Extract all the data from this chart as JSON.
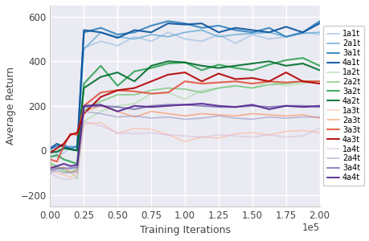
{
  "xlabel": "Training Iterations",
  "ylabel": "Average Return",
  "xlim": [
    0,
    200000
  ],
  "ylim": [
    -250,
    650
  ],
  "xticks": [
    0,
    25000,
    50000,
    75000,
    100000,
    125000,
    150000,
    175000,
    200000
  ],
  "xtick_labels": [
    "0.00",
    "0.25",
    "0.50",
    "0.75",
    "1.00",
    "1.25",
    "1.50",
    "1.75",
    "2.00"
  ],
  "xtick_exp": "1e5",
  "yticks": [
    -200,
    0,
    200,
    400,
    600
  ],
  "series": [
    {
      "label": "1a1t",
      "color": "#aec7e8",
      "alpha": 0.85,
      "lw": 1.3,
      "x": [
        0,
        5000,
        10000,
        15000,
        20000,
        25000,
        37500,
        50000,
        62500,
        75000,
        87500,
        100000,
        112500,
        125000,
        137500,
        150000,
        162500,
        175000,
        187500,
        200000
      ],
      "y": [
        -20,
        -30,
        -10,
        10,
        15,
        460,
        490,
        470,
        510,
        490,
        530,
        500,
        490,
        520,
        480,
        520,
        500,
        510,
        530,
        520
      ]
    },
    {
      "label": "2a1t",
      "color": "#6baed6",
      "alpha": 0.85,
      "lw": 1.3,
      "x": [
        0,
        5000,
        10000,
        15000,
        20000,
        25000,
        37500,
        50000,
        62500,
        75000,
        87500,
        100000,
        112500,
        125000,
        137500,
        150000,
        162500,
        175000,
        187500,
        200000
      ],
      "y": [
        0,
        -10,
        5,
        20,
        10,
        455,
        530,
        510,
        500,
        520,
        510,
        530,
        540,
        510,
        520,
        525,
        530,
        510,
        525,
        530
      ]
    },
    {
      "label": "3a1t",
      "color": "#3182bd",
      "alpha": 0.9,
      "lw": 1.5,
      "x": [
        0,
        5000,
        10000,
        15000,
        20000,
        25000,
        37500,
        50000,
        62500,
        75000,
        87500,
        100000,
        112500,
        125000,
        137500,
        150000,
        162500,
        175000,
        187500,
        200000
      ],
      "y": [
        5,
        20,
        25,
        10,
        20,
        530,
        550,
        520,
        530,
        560,
        580,
        570,
        550,
        560,
        540,
        530,
        550,
        510,
        530,
        580
      ]
    },
    {
      "label": "4a1t",
      "color": "#08519c",
      "alpha": 0.9,
      "lw": 1.5,
      "x": [
        0,
        5000,
        10000,
        15000,
        20000,
        25000,
        37500,
        50000,
        62500,
        75000,
        87500,
        100000,
        112500,
        125000,
        137500,
        150000,
        162500,
        175000,
        187500,
        200000
      ],
      "y": [
        10,
        30,
        15,
        5,
        0,
        540,
        530,
        505,
        540,
        530,
        570,
        565,
        570,
        530,
        550,
        540,
        530,
        555,
        530,
        570
      ]
    },
    {
      "label": "1a2t",
      "color": "#b2dfb2",
      "alpha": 0.75,
      "lw": 1.3,
      "x": [
        0,
        5000,
        10000,
        15000,
        20000,
        25000,
        37500,
        50000,
        62500,
        75000,
        87500,
        100000,
        112500,
        125000,
        137500,
        150000,
        162500,
        175000,
        187500,
        200000
      ],
      "y": [
        -50,
        -80,
        -100,
        -90,
        -130,
        130,
        175,
        200,
        210,
        255,
        260,
        230,
        270,
        280,
        290,
        280,
        310,
        290,
        300,
        310
      ]
    },
    {
      "label": "2a2t",
      "color": "#74c476",
      "alpha": 0.75,
      "lw": 1.3,
      "x": [
        0,
        5000,
        10000,
        15000,
        20000,
        25000,
        37500,
        50000,
        62500,
        75000,
        87500,
        100000,
        112500,
        125000,
        137500,
        150000,
        162500,
        175000,
        187500,
        200000
      ],
      "y": [
        -60,
        -70,
        -90,
        -100,
        -80,
        180,
        220,
        250,
        250,
        270,
        280,
        275,
        260,
        280,
        290,
        280,
        295,
        300,
        310,
        310
      ]
    },
    {
      "label": "3a2t",
      "color": "#31a354",
      "alpha": 0.9,
      "lw": 1.5,
      "x": [
        0,
        5000,
        10000,
        15000,
        20000,
        25000,
        37500,
        50000,
        62500,
        75000,
        87500,
        100000,
        112500,
        125000,
        137500,
        150000,
        162500,
        175000,
        187500,
        200000
      ],
      "y": [
        -30,
        -20,
        -40,
        -50,
        -60,
        300,
        380,
        290,
        355,
        370,
        390,
        395,
        360,
        385,
        370,
        360,
        385,
        405,
        415,
        380
      ]
    },
    {
      "label": "4a2t",
      "color": "#006d2c",
      "alpha": 0.9,
      "lw": 1.5,
      "x": [
        0,
        5000,
        10000,
        15000,
        20000,
        25000,
        37500,
        50000,
        62500,
        75000,
        87500,
        100000,
        112500,
        125000,
        137500,
        150000,
        162500,
        175000,
        187500,
        200000
      ],
      "y": [
        -10,
        -5,
        10,
        5,
        0,
        280,
        330,
        350,
        310,
        380,
        400,
        395,
        380,
        370,
        380,
        390,
        400,
        380,
        390,
        360
      ]
    },
    {
      "label": "1a3t",
      "color": "#fcbba1",
      "alpha": 0.65,
      "lw": 1.2,
      "x": [
        0,
        5000,
        10000,
        15000,
        20000,
        25000,
        37500,
        50000,
        62500,
        75000,
        87500,
        100000,
        112500,
        125000,
        137500,
        150000,
        162500,
        175000,
        187500,
        200000
      ],
      "y": [
        -80,
        -100,
        -110,
        -120,
        -100,
        120,
        125,
        75,
        100,
        95,
        70,
        40,
        60,
        55,
        75,
        80,
        70,
        85,
        90,
        80
      ]
    },
    {
      "label": "2a3t",
      "color": "#fc8d59",
      "alpha": 0.65,
      "lw": 1.2,
      "x": [
        0,
        5000,
        10000,
        15000,
        20000,
        25000,
        37500,
        50000,
        62500,
        75000,
        87500,
        100000,
        112500,
        125000,
        137500,
        150000,
        162500,
        175000,
        187500,
        200000
      ],
      "y": [
        -70,
        -80,
        -75,
        -100,
        -90,
        175,
        200,
        175,
        150,
        175,
        165,
        155,
        165,
        160,
        155,
        165,
        160,
        155,
        160,
        145
      ]
    },
    {
      "label": "3a3t",
      "color": "#e34a33",
      "alpha": 0.85,
      "lw": 1.5,
      "x": [
        0,
        5000,
        10000,
        15000,
        20000,
        25000,
        37500,
        50000,
        62500,
        75000,
        87500,
        100000,
        112500,
        125000,
        137500,
        150000,
        162500,
        175000,
        187500,
        200000
      ],
      "y": [
        -40,
        -50,
        20,
        75,
        70,
        200,
        260,
        270,
        265,
        255,
        260,
        310,
        300,
        305,
        310,
        300,
        310,
        305,
        310,
        310
      ]
    },
    {
      "label": "4a3t",
      "color": "#b30000",
      "alpha": 0.9,
      "lw": 1.5,
      "x": [
        0,
        5000,
        10000,
        15000,
        20000,
        25000,
        37500,
        50000,
        62500,
        75000,
        87500,
        100000,
        112500,
        125000,
        137500,
        150000,
        162500,
        175000,
        187500,
        200000
      ],
      "y": [
        -10,
        10,
        30,
        70,
        80,
        165,
        240,
        270,
        280,
        310,
        340,
        350,
        310,
        345,
        320,
        325,
        310,
        350,
        310,
        300
      ]
    },
    {
      "label": "1a4t",
      "color": "#d4b9da",
      "alpha": 0.55,
      "lw": 1.2,
      "x": [
        0,
        5000,
        10000,
        15000,
        20000,
        25000,
        37500,
        50000,
        62500,
        75000,
        87500,
        100000,
        112500,
        125000,
        137500,
        150000,
        162500,
        175000,
        187500,
        200000
      ],
      "y": [
        -100,
        -120,
        -130,
        -130,
        -120,
        130,
        110,
        80,
        75,
        80,
        70,
        65,
        60,
        70,
        65,
        60,
        70,
        60,
        65,
        100
      ]
    },
    {
      "label": "2a4t",
      "color": "#9e9ac8",
      "alpha": 0.65,
      "lw": 1.2,
      "x": [
        0,
        5000,
        10000,
        15000,
        20000,
        25000,
        37500,
        50000,
        62500,
        75000,
        87500,
        100000,
        112500,
        125000,
        137500,
        150000,
        162500,
        175000,
        187500,
        200000
      ],
      "y": [
        -100,
        -90,
        -100,
        -100,
        -95,
        175,
        165,
        150,
        155,
        145,
        150,
        140,
        145,
        155,
        145,
        140,
        150,
        145,
        150,
        150
      ]
    },
    {
      "label": "3a4t",
      "color": "#756bb1",
      "alpha": 0.8,
      "lw": 1.5,
      "x": [
        0,
        5000,
        10000,
        15000,
        20000,
        25000,
        37500,
        50000,
        62500,
        75000,
        87500,
        100000,
        112500,
        125000,
        137500,
        150000,
        162500,
        175000,
        187500,
        200000
      ],
      "y": [
        -90,
        -80,
        -80,
        -80,
        -75,
        195,
        200,
        195,
        185,
        200,
        205,
        205,
        200,
        195,
        195,
        200,
        195,
        200,
        200,
        195
      ]
    },
    {
      "label": "4a4t",
      "color": "#54278f",
      "alpha": 0.9,
      "lw": 1.5,
      "x": [
        0,
        5000,
        10000,
        15000,
        20000,
        25000,
        37500,
        50000,
        62500,
        75000,
        87500,
        100000,
        112500,
        125000,
        137500,
        150000,
        162500,
        175000,
        187500,
        200000
      ],
      "y": [
        -80,
        -70,
        -60,
        -70,
        -65,
        200,
        205,
        175,
        200,
        195,
        200,
        205,
        210,
        200,
        195,
        205,
        185,
        200,
        195,
        200
      ]
    }
  ],
  "legend_fontsize": 7.0,
  "axis_label_fontsize": 9,
  "tick_fontsize": 8.5,
  "background_color": "#eaeaf2",
  "grid_color": "#ffffff"
}
